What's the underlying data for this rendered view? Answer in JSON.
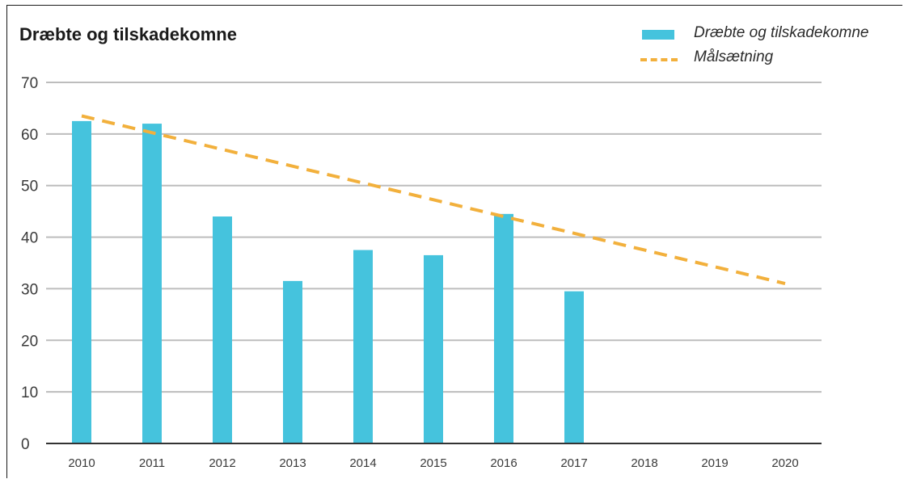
{
  "chart_data": {
    "type": "bar",
    "title": "Dræbte og tilskadekomne",
    "xlabel": "",
    "ylabel": "",
    "categories": [
      "2010",
      "2011",
      "2012",
      "2013",
      "2014",
      "2015",
      "2016",
      "2017",
      "2018",
      "2019",
      "2020"
    ],
    "ylim": [
      0,
      70
    ],
    "yticks": [
      "0",
      "10",
      "20",
      "30",
      "40",
      "50",
      "60",
      "70"
    ],
    "grid": true,
    "legend_position": "top-right",
    "series": [
      {
        "name": "Dræbte og tilskadekomne",
        "kind": "bar",
        "color": "#45c3dd",
        "values": [
          62.5,
          62,
          44,
          31.5,
          37.5,
          36.5,
          44.5,
          29.5,
          null,
          null,
          null
        ]
      },
      {
        "name": "Målsætning",
        "kind": "line",
        "style": "dashed",
        "color": "#f2b03c",
        "points": [
          {
            "x": "2010",
            "y": 63.5
          },
          {
            "x": "2020",
            "y": 31
          }
        ]
      }
    ]
  }
}
